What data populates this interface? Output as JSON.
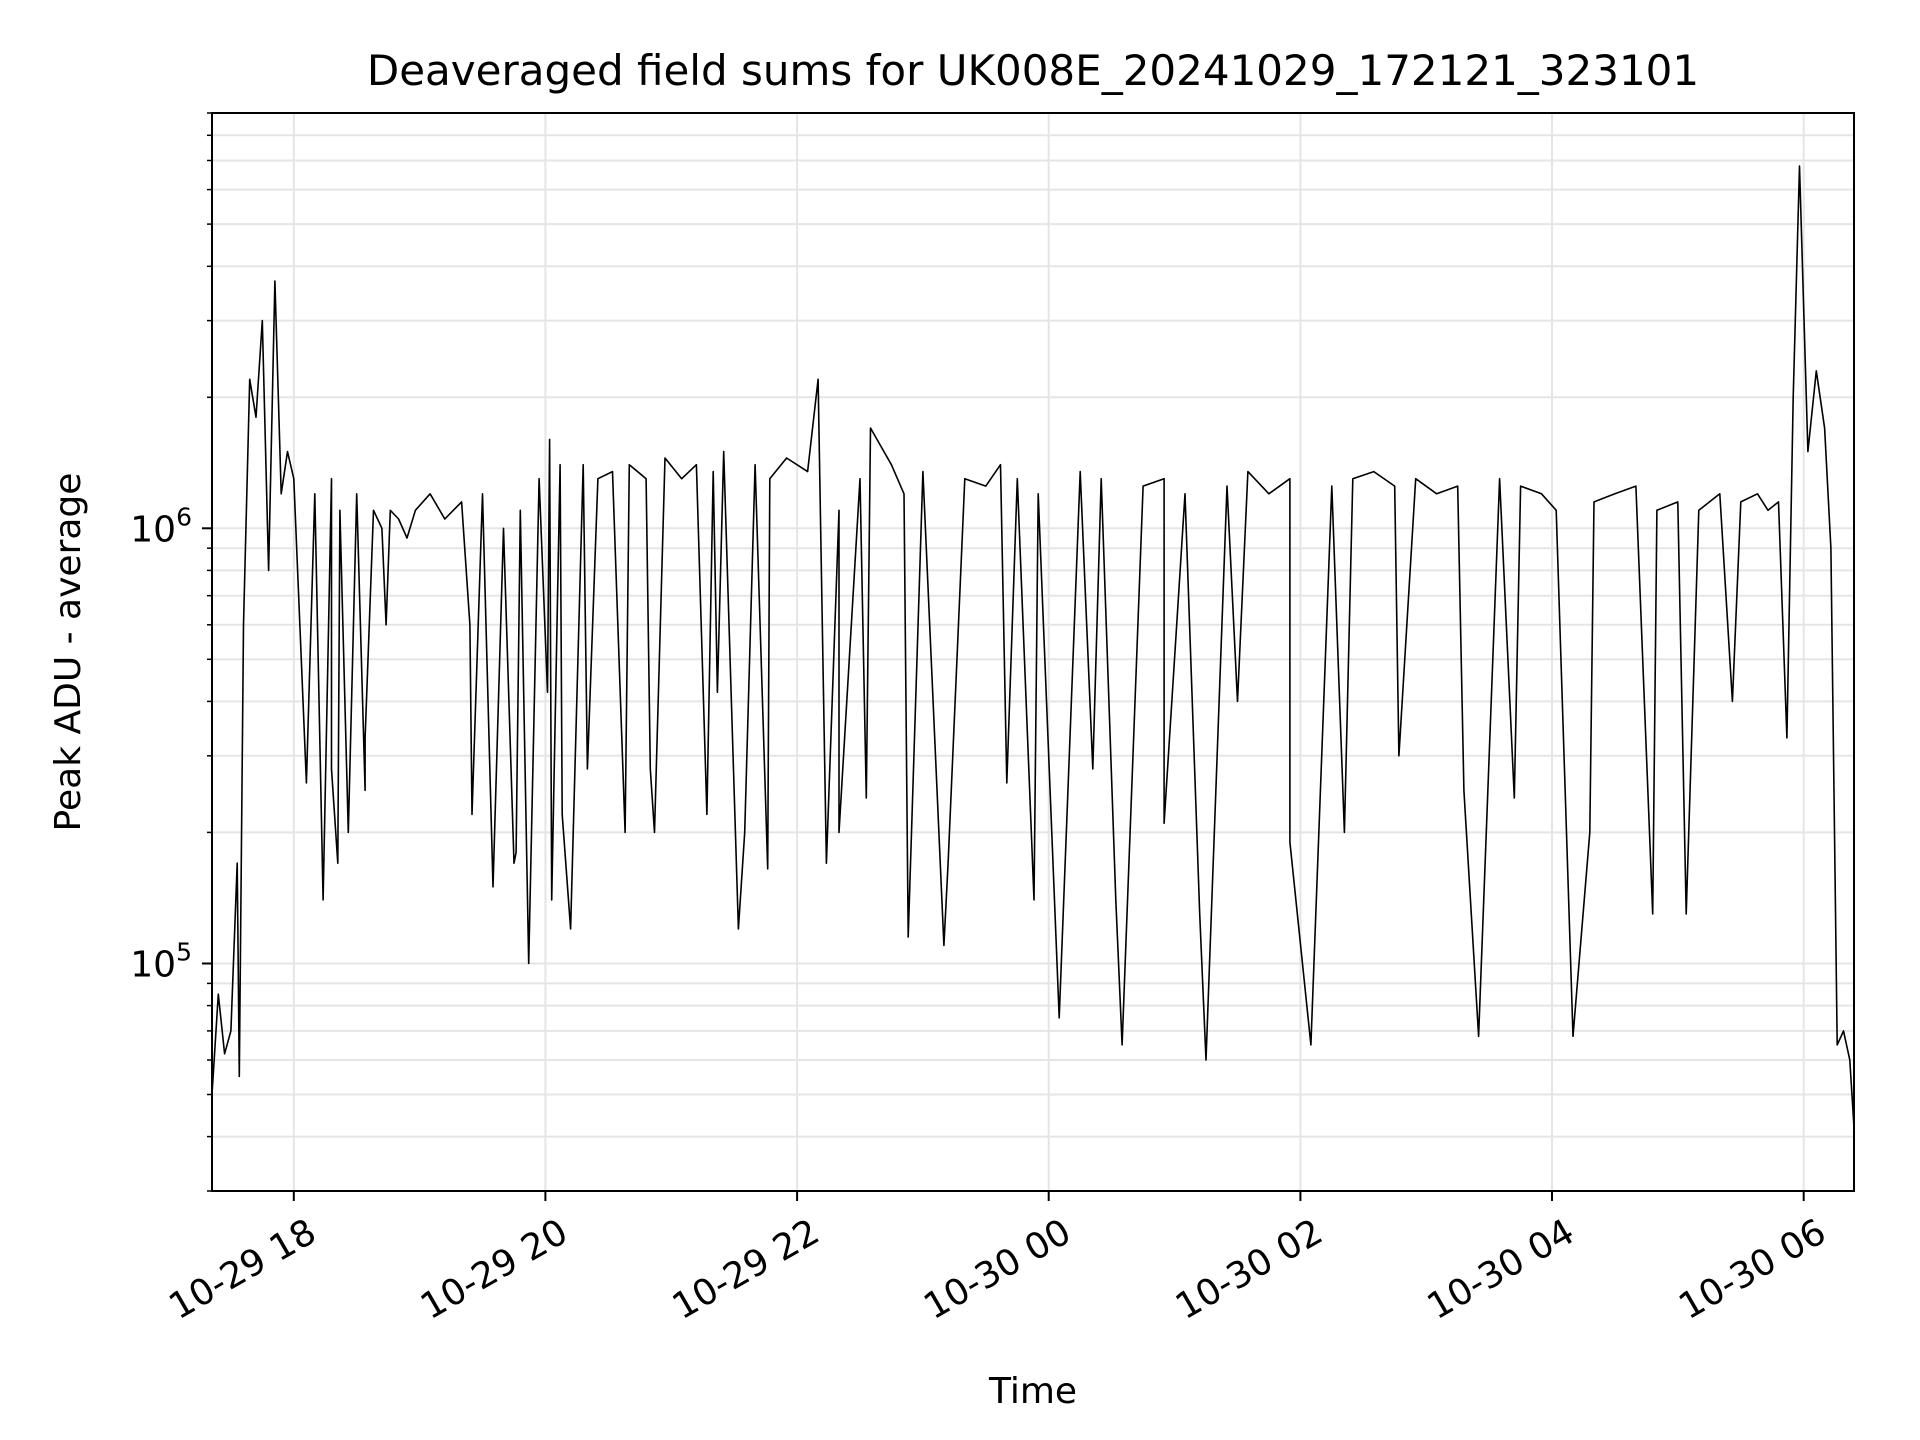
{
  "chart_data": {
    "type": "line",
    "title": "Deaveraged field sums for UK008E_20241029_172121_323101",
    "xlabel": "Time",
    "ylabel": "Peak ADU - average",
    "xscale": "time",
    "yscale": "log",
    "xlim": [
      "2024-10-29 17:21",
      "2024-10-30 06:24"
    ],
    "ylim": [
      30000,
      9000000
    ],
    "grid": true,
    "line_color": "#000000",
    "x_ticks": [
      {
        "t": "2024-10-29 18:00",
        "label": "10-29 18"
      },
      {
        "t": "2024-10-29 20:00",
        "label": "10-29 20"
      },
      {
        "t": "2024-10-29 22:00",
        "label": "10-29 22"
      },
      {
        "t": "2024-10-30 00:00",
        "label": "10-30 00"
      },
      {
        "t": "2024-10-30 02:00",
        "label": "10-30 02"
      },
      {
        "t": "2024-10-30 04:00",
        "label": "10-30 04"
      },
      {
        "t": "2024-10-30 06:00",
        "label": "10-30 06"
      }
    ],
    "y_ticks": [
      {
        "value": 100000,
        "base": "10",
        "exp": "5"
      },
      {
        "value": 1000000,
        "base": "10",
        "exp": "6"
      }
    ],
    "series": [
      {
        "x": [
          "2024-10-29 17:21",
          "2024-10-29 17:24",
          "2024-10-29 17:27",
          "2024-10-29 17:30",
          "2024-10-29 17:33",
          "2024-10-29 17:36",
          "2024-10-29 17:39",
          "2024-10-29 17:42",
          "2024-10-29 17:45",
          "2024-10-29 17:48",
          "2024-10-29 17:51",
          "2024-10-29 17:54",
          "2024-10-29 17:57",
          "2024-10-29 18:00",
          "2024-10-29 18:06",
          "2024-10-29 18:10",
          "2024-10-29 18:14",
          "2024-10-29 18:18",
          "2024-10-29 18:22",
          "2024-10-29 18:26",
          "2024-10-29 18:30",
          "2024-10-29 18:34",
          "2024-10-29 18:38",
          "2024-10-29 18:42",
          "2024-10-29 18:46",
          "2024-10-29 18:50",
          "2024-10-29 18:54",
          "2024-10-29 18:58",
          "2024-10-29 19:05",
          "2024-10-29 19:12",
          "2024-10-29 19:20",
          "2024-10-29 19:25",
          "2024-10-29 19:30",
          "2024-10-29 19:35",
          "2024-10-29 19:40",
          "2024-10-29 19:45",
          "2024-10-29 19:48",
          "2024-10-29 19:52",
          "2024-10-29 19:57",
          "2024-10-29 20:02",
          "2024-10-29 20:07",
          "2024-10-29 20:12",
          "2024-10-29 20:18",
          "2024-10-29 20:25",
          "2024-10-29 20:32",
          "2024-10-29 20:40",
          "2024-10-29 20:48",
          "2024-10-29 20:52",
          "2024-10-29 20:57",
          "2024-10-29 21:05",
          "2024-10-29 21:12",
          "2024-10-29 21:20",
          "2024-10-29 21:25",
          "2024-10-29 21:32",
          "2024-10-29 21:40",
          "2024-10-29 21:47",
          "2024-10-29 21:55",
          "2024-10-29 22:05",
          "2024-10-29 22:10",
          "2024-10-29 22:20",
          "2024-10-29 22:30",
          "2024-10-29 22:35",
          "2024-10-29 22:45",
          "2024-10-29 22:51",
          "2024-10-29 23:00",
          "2024-10-29 23:10",
          "2024-10-29 23:20",
          "2024-10-29 23:30",
          "2024-10-29 23:37",
          "2024-10-29 23:45",
          "2024-10-29 23:55",
          "2024-10-30 00:05",
          "2024-10-30 00:15",
          "2024-10-30 00:25",
          "2024-10-30 00:35",
          "2024-10-30 00:45",
          "2024-10-30 00:55",
          "2024-10-30 01:05",
          "2024-10-30 01:15",
          "2024-10-30 01:25",
          "2024-10-30 01:35",
          "2024-10-30 01:45",
          "2024-10-30 01:55",
          "2024-10-30 02:05",
          "2024-10-30 02:15",
          "2024-10-30 02:25",
          "2024-10-30 02:35",
          "2024-10-30 02:45",
          "2024-10-30 02:55",
          "2024-10-30 03:05",
          "2024-10-30 03:15",
          "2024-10-30 03:25",
          "2024-10-30 03:35",
          "2024-10-30 03:45",
          "2024-10-30 03:55",
          "2024-10-30 04:02",
          "2024-10-30 04:10",
          "2024-10-30 04:20",
          "2024-10-30 04:30",
          "2024-10-30 04:40",
          "2024-10-30 04:50",
          "2024-10-30 05:00",
          "2024-10-30 05:10",
          "2024-10-30 05:20",
          "2024-10-30 05:30",
          "2024-10-30 05:38",
          "2024-10-30 05:43",
          "2024-10-30 05:48",
          "2024-10-30 05:52",
          "2024-10-30 05:55",
          "2024-10-30 05:58",
          "2024-10-30 06:02",
          "2024-10-30 06:06",
          "2024-10-30 06:10",
          "2024-10-30 06:13",
          "2024-10-30 06:16",
          "2024-10-30 06:19",
          "2024-10-30 06:22",
          "2024-10-30 06:24"
        ],
        "values": [
          50000,
          85000,
          62000,
          70000,
          170000,
          600000,
          2200000,
          1800000,
          3000000,
          800000,
          3700000,
          1200000,
          1500000,
          1300000,
          260000,
          1200000,
          140000,
          1300000,
          1100000,
          200000,
          1200000,
          250000,
          1100000,
          1000000,
          1100000,
          1050000,
          950000,
          1100000,
          1200000,
          1050000,
          1150000,
          220000,
          1200000,
          150000,
          1000000,
          170000,
          1100000,
          100000,
          1300000,
          1600000,
          1400000,
          120000,
          1400000,
          1300000,
          1350000,
          1400000,
          1300000,
          200000,
          1450000,
          1300000,
          1400000,
          1350000,
          1500000,
          120000,
          1400000,
          1300000,
          1450000,
          1350000,
          2200000,
          1100000,
          1300000,
          1700000,
          1400000,
          1200000,
          1350000,
          110000,
          1300000,
          1250000,
          1400000,
          1300000,
          1200000,
          75000,
          1350000,
          1300000,
          65000,
          1250000,
          1300000,
          1200000,
          60000,
          1250000,
          1350000,
          1200000,
          1300000,
          65000,
          1250000,
          1300000,
          1350000,
          1250000,
          1300000,
          1200000,
          1250000,
          68000,
          1300000,
          1250000,
          1200000,
          1100000,
          68000,
          1150000,
          1200000,
          1250000,
          1100000,
          1150000,
          1100000,
          1200000,
          1150000,
          1200000,
          1100000,
          1150000,
          330000,
          2000000,
          6800000,
          1500000,
          2300000,
          1700000,
          900000,
          65000,
          70000,
          60000,
          42000
        ],
        "hidden_dips": [
          [
            "2024-10-29 17:34",
            55000
          ],
          [
            "2024-10-29 18:18",
            280000
          ],
          [
            "2024-10-29 18:21",
            170000
          ],
          [
            "2024-10-29 18:34",
            330000
          ],
          [
            "2024-10-29 18:44",
            600000
          ],
          [
            "2024-10-29 19:24",
            600000
          ],
          [
            "2024-10-29 19:46",
            180000
          ],
          [
            "2024-10-29 20:01",
            420000
          ],
          [
            "2024-10-29 20:03",
            140000
          ],
          [
            "2024-10-29 20:08",
            220000
          ],
          [
            "2024-10-29 20:20",
            280000
          ],
          [
            "2024-10-29 20:38",
            200000
          ],
          [
            "2024-10-29 20:50",
            280000
          ],
          [
            "2024-10-29 21:17",
            220000
          ],
          [
            "2024-10-29 21:22",
            420000
          ],
          [
            "2024-10-29 21:35",
            200000
          ],
          [
            "2024-10-29 21:46",
            165000
          ],
          [
            "2024-10-29 22:14",
            170000
          ],
          [
            "2024-10-29 22:20",
            200000
          ],
          [
            "2024-10-29 22:33",
            240000
          ],
          [
            "2024-10-29 22:53",
            115000
          ],
          [
            "2024-10-29 23:12",
            170000
          ],
          [
            "2024-10-29 23:40",
            260000
          ],
          [
            "2024-10-29 23:53",
            140000
          ],
          [
            "2024-10-30 00:21",
            280000
          ],
          [
            "2024-10-30 00:32",
            140000
          ],
          [
            "2024-10-30 00:55",
            210000
          ],
          [
            "2024-10-30 01:12",
            130000
          ],
          [
            "2024-10-30 01:30",
            400000
          ],
          [
            "2024-10-30 01:55",
            190000
          ],
          [
            "2024-10-30 02:21",
            200000
          ],
          [
            "2024-10-30 02:47",
            300000
          ],
          [
            "2024-10-30 03:18",
            250000
          ],
          [
            "2024-10-30 03:42",
            240000
          ],
          [
            "2024-10-30 04:18",
            200000
          ],
          [
            "2024-10-30 04:48",
            130000
          ],
          [
            "2024-10-30 05:04",
            130000
          ],
          [
            "2024-10-30 05:26",
            400000
          ]
        ]
      }
    ]
  }
}
